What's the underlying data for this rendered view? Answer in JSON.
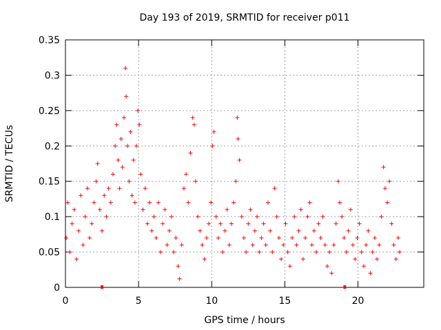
{
  "chart_data": {
    "type": "scatter",
    "title": "Day 193 of 2019, SRMTID for receiver p011",
    "xlabel": "GPS time / hours",
    "ylabel": "SRMTID / TECUs",
    "xlim": [
      0,
      24.5
    ],
    "ylim": [
      0,
      0.35
    ],
    "x_ticks": [
      0,
      5,
      10,
      15,
      20
    ],
    "x_tick_labels": [
      "0",
      "5",
      "10",
      "15",
      "20"
    ],
    "y_ticks": [
      0,
      0.05,
      0.1,
      0.15,
      0.2,
      0.25,
      0.3,
      0.35
    ],
    "y_tick_labels": [
      "0",
      "0.05",
      "0.1",
      "0.15",
      "0.2",
      "0.25",
      "0.3",
      "0.35"
    ],
    "grid": true,
    "marker": "plus",
    "color": "#ff0000",
    "series": [
      {
        "name": "SRMTID",
        "points": [
          [
            0.05,
            0.07
          ],
          [
            0.15,
            0.12
          ],
          [
            0.3,
            0.05
          ],
          [
            0.45,
            0.09
          ],
          [
            0.6,
            0.11
          ],
          [
            0.75,
            0.04
          ],
          [
            0.9,
            0.08
          ],
          [
            1.05,
            0.13
          ],
          [
            1.2,
            0.06
          ],
          [
            1.35,
            0.1
          ],
          [
            1.5,
            0.14
          ],
          [
            1.65,
            0.07
          ],
          [
            1.8,
            0.09
          ],
          [
            1.95,
            0.12
          ],
          [
            2.1,
            0.15
          ],
          [
            2.2,
            0.175
          ],
          [
            2.35,
            0.11
          ],
          [
            2.5,
            0.08
          ],
          [
            2.65,
            0.13
          ],
          [
            2.8,
            0.1
          ],
          [
            2.95,
            0.14
          ],
          [
            3.1,
            0.12
          ],
          [
            3.25,
            0.16
          ],
          [
            3.4,
            0.2
          ],
          [
            3.5,
            0.23
          ],
          [
            3.6,
            0.18
          ],
          [
            3.7,
            0.14
          ],
          [
            3.8,
            0.21
          ],
          [
            3.9,
            0.17
          ],
          [
            4.0,
            0.24
          ],
          [
            4.1,
            0.31
          ],
          [
            4.15,
            0.27
          ],
          [
            4.25,
            0.2
          ],
          [
            4.35,
            0.15
          ],
          [
            4.45,
            0.22
          ],
          [
            4.55,
            0.13
          ],
          [
            4.65,
            0.18
          ],
          [
            4.75,
            0.12
          ],
          [
            4.85,
            0.2
          ],
          [
            4.95,
            0.25
          ],
          [
            5.05,
            0.23
          ],
          [
            5.15,
            0.16
          ],
          [
            5.3,
            0.11
          ],
          [
            5.45,
            0.14
          ],
          [
            5.6,
            0.09
          ],
          [
            5.75,
            0.12
          ],
          [
            5.9,
            0.08
          ],
          [
            6.05,
            0.1
          ],
          [
            6.2,
            0.07
          ],
          [
            6.35,
            0.12
          ],
          [
            6.5,
            0.05
          ],
          [
            6.65,
            0.09
          ],
          [
            6.8,
            0.11
          ],
          [
            6.95,
            0.06
          ],
          [
            7.1,
            0.08
          ],
          [
            7.25,
            0.1
          ],
          [
            7.4,
            0.05
          ],
          [
            7.55,
            0.07
          ],
          [
            7.7,
            0.03
          ],
          [
            7.8,
            0.012
          ],
          [
            7.95,
            0.06
          ],
          [
            8.1,
            0.14
          ],
          [
            8.25,
            0.16
          ],
          [
            8.4,
            0.12
          ],
          [
            8.55,
            0.19
          ],
          [
            8.7,
            0.24
          ],
          [
            8.8,
            0.23
          ],
          [
            8.9,
            0.15
          ],
          [
            9.05,
            0.1
          ],
          [
            9.2,
            0.08
          ],
          [
            9.35,
            0.06
          ],
          [
            9.5,
            0.04
          ],
          [
            9.65,
            0.07
          ],
          [
            9.8,
            0.09
          ],
          [
            9.95,
            0.12
          ],
          [
            10.05,
            0.2
          ],
          [
            10.15,
            0.22
          ],
          [
            10.3,
            0.1
          ],
          [
            10.45,
            0.07
          ],
          [
            10.6,
            0.09
          ],
          [
            10.75,
            0.05
          ],
          [
            10.9,
            0.08
          ],
          [
            11.05,
            0.11
          ],
          [
            11.2,
            0.06
          ],
          [
            11.35,
            0.09
          ],
          [
            11.5,
            0.12
          ],
          [
            11.65,
            0.15
          ],
          [
            11.75,
            0.24
          ],
          [
            11.8,
            0.21
          ],
          [
            11.9,
            0.18
          ],
          [
            12.05,
            0.1
          ],
          [
            12.2,
            0.07
          ],
          [
            12.35,
            0.05
          ],
          [
            12.5,
            0.09
          ],
          [
            12.65,
            0.11
          ],
          [
            12.8,
            0.06
          ],
          [
            12.95,
            0.08
          ],
          [
            13.1,
            0.1
          ],
          [
            13.25,
            0.05
          ],
          [
            13.4,
            0.07
          ],
          [
            13.55,
            0.09
          ],
          [
            13.7,
            0.06
          ],
          [
            13.85,
            0.12
          ],
          [
            14.0,
            0.08
          ],
          [
            14.15,
            0.05
          ],
          [
            14.3,
            0.14
          ],
          [
            14.45,
            0.1
          ],
          [
            14.6,
            0.07
          ],
          [
            14.75,
            0.04
          ],
          [
            14.9,
            0.06
          ],
          [
            15.05,
            0.09
          ],
          [
            15.2,
            0.05
          ],
          [
            15.35,
            0.03
          ],
          [
            15.5,
            0.07
          ],
          [
            15.65,
            0.1
          ],
          [
            15.8,
            0.06
          ],
          [
            15.95,
            0.08
          ],
          [
            16.1,
            0.11
          ],
          [
            16.25,
            0.04
          ],
          [
            16.4,
            0.07
          ],
          [
            16.55,
            0.1
          ],
          [
            16.7,
            0.12
          ],
          [
            16.85,
            0.06
          ],
          [
            17.0,
            0.08
          ],
          [
            17.15,
            0.05
          ],
          [
            17.3,
            0.09
          ],
          [
            17.45,
            0.07
          ],
          [
            17.6,
            0.1
          ],
          [
            17.75,
            0.06
          ],
          [
            17.9,
            0.03
          ],
          [
            18.05,
            0.05
          ],
          [
            18.2,
            0.02
          ],
          [
            18.35,
            0.06
          ],
          [
            18.5,
            0.09
          ],
          [
            18.65,
            0.15
          ],
          [
            18.75,
            0.12
          ],
          [
            18.9,
            0.1
          ],
          [
            19.05,
            0.07
          ],
          [
            19.2,
            0.05
          ],
          [
            19.35,
            0.08
          ],
          [
            19.5,
            0.11
          ],
          [
            19.65,
            0.06
          ],
          [
            19.8,
            0.04
          ],
          [
            19.95,
            0.07
          ],
          [
            20.1,
            0.09
          ],
          [
            20.25,
            0.05
          ],
          [
            20.4,
            0.03
          ],
          [
            20.55,
            0.06
          ],
          [
            20.7,
            0.08
          ],
          [
            20.85,
            0.02
          ],
          [
            21.0,
            0.05
          ],
          [
            21.15,
            0.07
          ],
          [
            21.3,
            0.04
          ],
          [
            21.45,
            0.06
          ],
          [
            21.6,
            0.1
          ],
          [
            21.75,
            0.17
          ],
          [
            21.85,
            0.14
          ],
          [
            22.0,
            0.12
          ],
          [
            22.15,
            0.15
          ],
          [
            22.3,
            0.09
          ],
          [
            22.45,
            0.06
          ],
          [
            22.6,
            0.04
          ],
          [
            22.75,
            0.07
          ],
          [
            22.85,
            0.05
          ]
        ]
      }
    ],
    "markers_on_axis": [
      2.5,
      19.1
    ]
  }
}
